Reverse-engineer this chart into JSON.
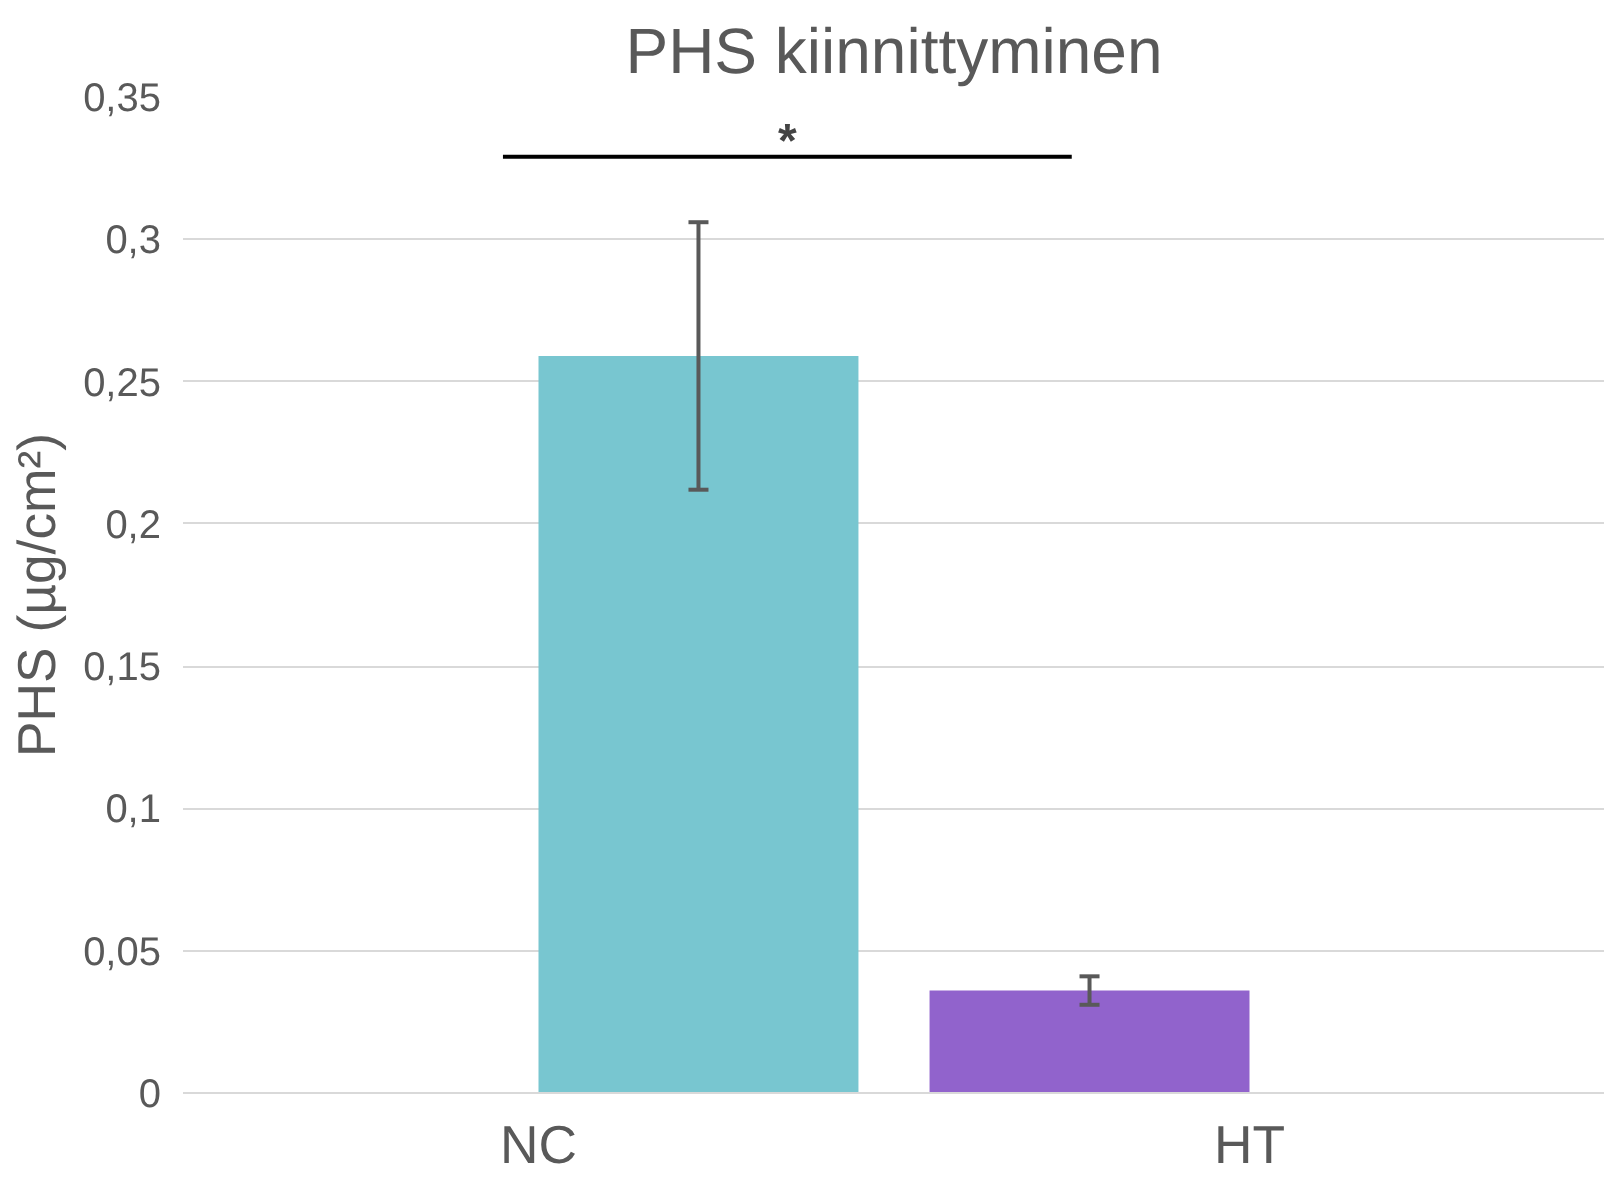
{
  "chart_data": {
    "type": "bar",
    "title": "PHS kiinnittyminen",
    "ylabel": "PHS (µg/cm²)",
    "categories": [
      "NC",
      "HT"
    ],
    "series": [
      {
        "color": "#9163cc",
        "values": [
          null,
          0.036
        ],
        "errors": [
          null,
          0.005
        ]
      },
      {
        "color": "#78c6d0",
        "values": [
          0.259,
          null
        ],
        "errors": [
          0.047,
          null
        ]
      }
    ],
    "ylim": [
      0,
      0.35
    ],
    "yticks": [
      0,
      {
        "value": 0.05,
        "label": "0,05"
      },
      {
        "value": 0.1,
        "label": "0,1"
      },
      {
        "value": 0.15,
        "label": "0,15"
      },
      {
        "value": 0.2,
        "label": "0,2"
      },
      {
        "value": 0.25,
        "label": "0,25"
      },
      {
        "value": 0.3,
        "label": "0,3"
      },
      {
        "value": 0.35,
        "label": "0,35"
      }
    ],
    "grid": "y",
    "annotations": [
      "*"
    ]
  }
}
